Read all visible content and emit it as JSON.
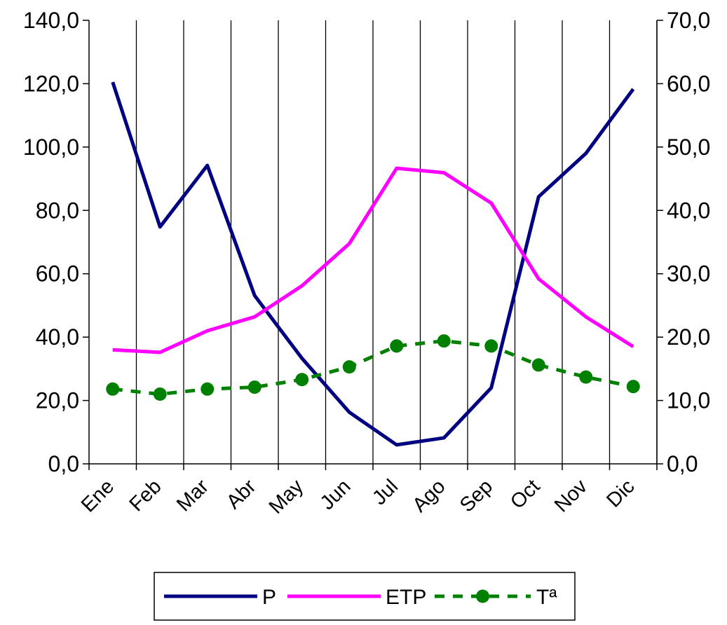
{
  "chart_data": {
    "type": "line",
    "categories": [
      "Ene",
      "Feb",
      "Mar",
      "Abr",
      "May",
      "Jun",
      "Jul",
      "Ago",
      "Sep",
      "Oct",
      "Nov",
      "Dic"
    ],
    "y_left": {
      "ylim": [
        0,
        140
      ],
      "ticks": [
        "0,0",
        "20,0",
        "40,0",
        "60,0",
        "80,0",
        "100,0",
        "120,0",
        "140,0"
      ]
    },
    "y_right": {
      "ylim": [
        0,
        70
      ],
      "ticks": [
        "0,0",
        "10,0",
        "20,0",
        "30,0",
        "40,0",
        "50,0",
        "60,0",
        "70,0"
      ]
    },
    "grid": "vertical",
    "legend_position": "bottom",
    "series": [
      {
        "name": "P",
        "axis": "left",
        "color": "#000080",
        "style": "solid",
        "marker": "none",
        "values": [
          120.5,
          74.8,
          94.2,
          53.1,
          33.3,
          16.3,
          6.0,
          8.2,
          24.0,
          84.3,
          98.0,
          118.3
        ]
      },
      {
        "name": "ETP",
        "axis": "left",
        "color": "#ff00ff",
        "style": "solid",
        "marker": "none",
        "values": [
          36.0,
          35.2,
          42.0,
          46.4,
          56.2,
          69.5,
          93.3,
          91.9,
          82.3,
          58.4,
          46.4,
          37.0
        ]
      },
      {
        "name": "Tª",
        "axis": "right",
        "color": "#008000",
        "style": "dashed",
        "marker": "circle",
        "values": [
          11.8,
          11.0,
          11.8,
          12.1,
          13.3,
          15.3,
          18.6,
          19.4,
          18.6,
          15.6,
          13.7,
          12.2
        ]
      }
    ]
  }
}
